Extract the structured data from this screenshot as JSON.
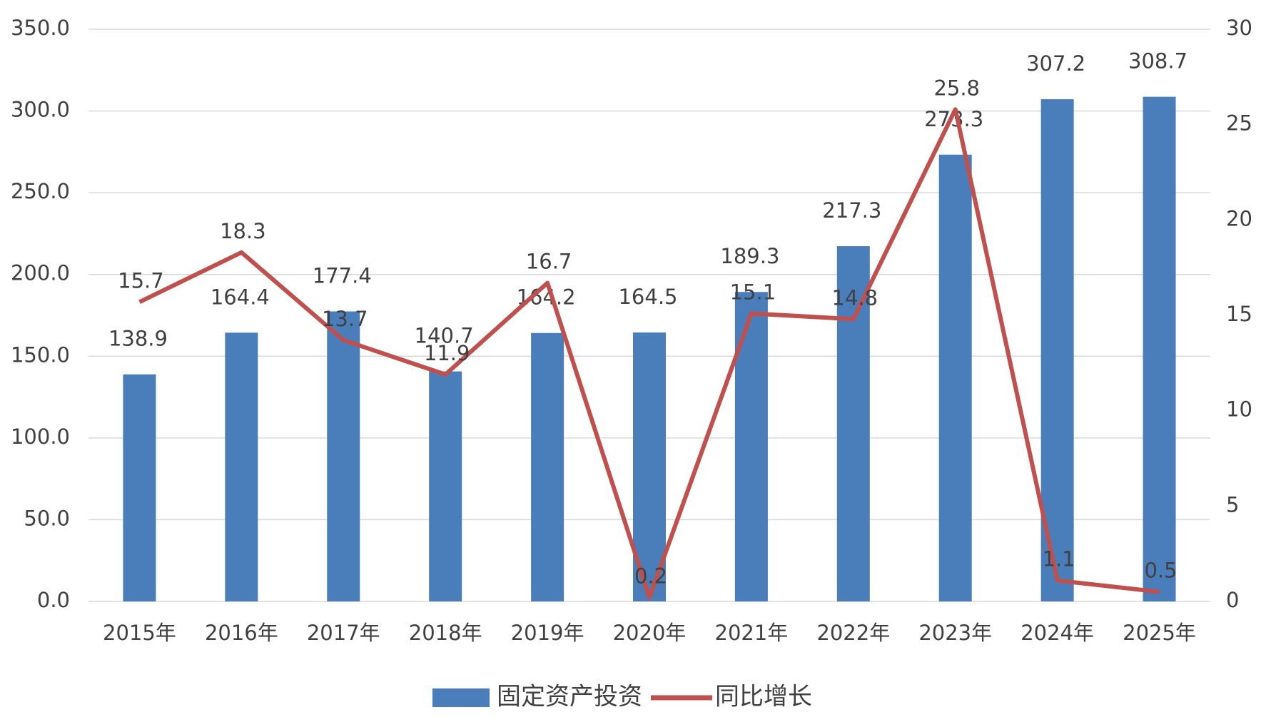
{
  "chart_data": {
    "type": "bar-line",
    "categories": [
      "2015年",
      "2016年",
      "2017年",
      "2018年",
      "2019年",
      "2020年",
      "2021年",
      "2022年",
      "2023年",
      "2024年",
      "2025年"
    ],
    "series": [
      {
        "name": "固定资产投资",
        "type": "bar",
        "color": "#4a7ebb",
        "values": [
          138.9,
          164.4,
          177.4,
          140.7,
          164.2,
          164.5,
          189.3,
          217.3,
          273.3,
          307.2,
          308.7
        ]
      },
      {
        "name": "同比增长",
        "type": "line",
        "color": "#c0504d",
        "axis": "y2",
        "values": [
          15.7,
          18.3,
          13.7,
          11.9,
          16.7,
          0.2,
          15.1,
          14.8,
          25.8,
          1.1,
          0.5
        ]
      }
    ],
    "ylim": [
      0,
      350
    ],
    "yticks": [
      {
        "value": 0,
        "label": "0.0"
      },
      {
        "value": 50,
        "label": "50.0"
      },
      {
        "value": 100,
        "label": "100.0"
      },
      {
        "value": 150,
        "label": "150.0"
      },
      {
        "value": 200,
        "label": "200.0"
      },
      {
        "value": 250,
        "label": "250.0"
      },
      {
        "value": 300,
        "label": "300.0"
      },
      {
        "value": 350,
        "label": "350.0"
      }
    ],
    "y2lim": [
      0,
      30
    ],
    "y2ticks": [
      0,
      5,
      10,
      15,
      20,
      25,
      30
    ],
    "grid": true,
    "legend": "bottom"
  }
}
